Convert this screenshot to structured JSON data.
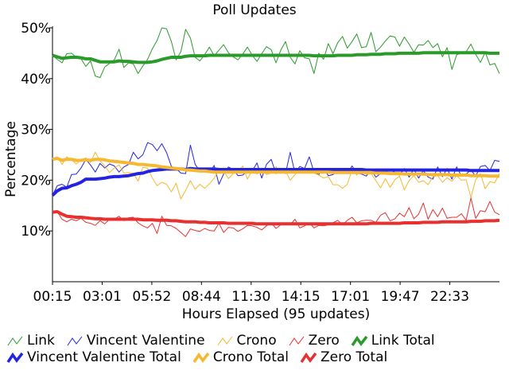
{
  "chart_data": {
    "type": "line",
    "title": "Poll Updates",
    "xlabel": "Hours Elapsed (95 updates)",
    "ylabel": "Percentage",
    "x_ticks": [
      "00:15",
      "03:01",
      "05:52",
      "08:44",
      "11:30",
      "14:15",
      "17:01",
      "19:47",
      "22:33"
    ],
    "y_ticks": [
      "10%",
      "20%",
      "30%",
      "40%",
      "50%"
    ],
    "ylim": [
      0,
      50
    ],
    "points": 95,
    "grid": false,
    "legend_position": "bottom",
    "series": [
      {
        "name": "Link",
        "color": "#2a9a2a",
        "style": "thin",
        "values": [
          44.6,
          43.8,
          43.1,
          44.9,
          45.0,
          44.2,
          43.9,
          42.4,
          43.5,
          40.5,
          40.2,
          42.3,
          43.0,
          43.7,
          45.8,
          42.2,
          43.1,
          42.9,
          41.0,
          42.5,
          43.8,
          45.9,
          47.5,
          50.0,
          49.8,
          47.3,
          43.7,
          45.3,
          49.7,
          48.0,
          44.2,
          43.5,
          44.7,
          46.2,
          44.5,
          45.6,
          46.7,
          45.1,
          44.3,
          43.7,
          44.8,
          46.2,
          44.6,
          43.4,
          44.9,
          46.3,
          45.7,
          43.1,
          45.6,
          47.3,
          44.2,
          42.9,
          45.5,
          44.1,
          43.9,
          41.0,
          45.0,
          43.8,
          46.9,
          44.9,
          47.1,
          48.3,
          46.0,
          47.3,
          48.8,
          46.1,
          46.3,
          49.1,
          45.3,
          46.2,
          47.4,
          48.4,
          48.2,
          46.4,
          48.2,
          46.8,
          45.2,
          46.7,
          46.6,
          47.5,
          46.1,
          46.9,
          44.3,
          46.1,
          41.8,
          44.7,
          45.0,
          45.3,
          46.8,
          44.8,
          43.2,
          45.2,
          42.7,
          43.0,
          41.0
        ]
      },
      {
        "name": "Vincent Valentine",
        "color": "#2424e0",
        "style": "thin",
        "values": [
          17.0,
          18.9,
          19.2,
          18.6,
          21.1,
          21.2,
          22.4,
          24.1,
          23.0,
          21.6,
          23.3,
          22.4,
          23.2,
          22.8,
          21.6,
          22.6,
          23.1,
          25.5,
          24.2,
          25.0,
          27.4,
          27.0,
          25.8,
          27.2,
          25.4,
          22.7,
          22.3,
          21.4,
          21.3,
          26.9,
          23.1,
          21.8,
          22.3,
          21.5,
          22.9,
          19.2,
          21.2,
          22.6,
          22.1,
          20.9,
          21.0,
          21.8,
          21.8,
          23.4,
          20.4,
          23.1,
          24.1,
          21.3,
          22.3,
          21.3,
          25.5,
          21.4,
          22.7,
          22.3,
          24.6,
          21.6,
          21.1,
          22.3,
          20.9,
          21.1,
          21.8,
          22.3,
          21.3,
          22.8,
          21.4,
          21.2,
          20.8,
          22.0,
          20.6,
          21.3,
          21.5,
          22.1,
          21.5,
          21.0,
          22.3,
          20.6,
          22.2,
          20.4,
          21.9,
          20.6,
          20.2,
          22.6,
          20.7,
          22.3,
          20.2,
          22.6,
          20.8,
          21.2,
          22.0,
          20.8,
          22.7,
          22.9,
          21.9,
          23.9,
          23.7
        ]
      },
      {
        "name": "Crono",
        "color": "#f5b830",
        "style": "thin",
        "values": [
          24.1,
          24.6,
          23.1,
          24.6,
          24.0,
          23.2,
          24.0,
          24.4,
          23.5,
          25.5,
          23.8,
          22.8,
          21.5,
          22.4,
          23.0,
          21.4,
          21.5,
          21.4,
          19.8,
          22.5,
          22.4,
          20.4,
          18.9,
          19.6,
          19.2,
          17.7,
          19.4,
          16.3,
          18.0,
          19.9,
          18.2,
          19.2,
          18.4,
          19.3,
          20.4,
          21.9,
          21.9,
          20.3,
          21.3,
          21.5,
          22.8,
          20.2,
          22.0,
          21.2,
          22.3,
          21.1,
          21.4,
          22.7,
          21.3,
          21.8,
          20.0,
          21.1,
          22.1,
          21.8,
          21.8,
          21.4,
          21.0,
          20.4,
          20.7,
          19.1,
          19.1,
          18.4,
          19.2,
          22.0,
          21.0,
          22.3,
          21.1,
          21.3,
          19.9,
          18.5,
          20.3,
          18.6,
          20.1,
          20.8,
          18.1,
          19.9,
          20.9,
          19.6,
          19.9,
          19.1,
          20.7,
          20.9,
          19.6,
          20.5,
          19.8,
          20.9,
          20.0,
          20.1,
          16.6,
          20.1,
          21.3,
          18.3,
          19.7,
          19.5,
          21.3
        ]
      },
      {
        "name": "Zero",
        "color": "#e83030",
        "style": "thin",
        "values": [
          13.7,
          13.8,
          12.3,
          11.8,
          12.3,
          12.0,
          12.5,
          11.7,
          11.5,
          11.1,
          12.0,
          11.4,
          12.3,
          12.3,
          12.9,
          12.0,
          12.6,
          12.7,
          11.6,
          11.0,
          10.6,
          11.5,
          9.5,
          12.9,
          11.1,
          11.0,
          10.5,
          9.7,
          8.9,
          10.4,
          10.1,
          9.9,
          10.5,
          10.1,
          10.0,
          11.5,
          9.7,
          10.7,
          10.6,
          9.9,
          10.4,
          11.1,
          11.0,
          10.7,
          10.2,
          11.0,
          11.6,
          10.5,
          11.2,
          11.5,
          11.2,
          12.3,
          10.6,
          11.0,
          11.6,
          10.6,
          11.1,
          11.0,
          11.2,
          11.6,
          12.1,
          11.2,
          12.1,
          12.7,
          11.6,
          12.0,
          12.1,
          12.1,
          11.7,
          13.1,
          13.6,
          12.0,
          12.4,
          13.5,
          12.8,
          14.6,
          12.4,
          13.3,
          15.5,
          12.3,
          14.2,
          12.8,
          14.5,
          12.5,
          12.7,
          12.7,
          13.4,
          12.1,
          16.5,
          12.5,
          14.0,
          13.8,
          15.8,
          13.7,
          13.2
        ]
      },
      {
        "name": "Link Total",
        "color": "#2a9a2a",
        "style": "thick",
        "values": [
          44.6,
          44.3,
          44.0,
          44.1,
          44.2,
          44.2,
          44.1,
          43.9,
          43.9,
          43.6,
          43.3,
          43.3,
          43.3,
          43.3,
          43.5,
          43.4,
          43.4,
          43.3,
          43.2,
          43.2,
          43.2,
          43.3,
          43.5,
          43.8,
          44.0,
          44.2,
          44.2,
          44.2,
          44.4,
          44.5,
          44.5,
          44.5,
          44.5,
          44.6,
          44.6,
          44.6,
          44.6,
          44.6,
          44.6,
          44.6,
          44.6,
          44.6,
          44.6,
          44.6,
          44.6,
          44.6,
          44.6,
          44.6,
          44.6,
          44.6,
          44.6,
          44.6,
          44.6,
          44.6,
          44.6,
          44.5,
          44.5,
          44.5,
          44.5,
          44.5,
          44.6,
          44.6,
          44.6,
          44.6,
          44.7,
          44.7,
          44.7,
          44.8,
          44.8,
          44.8,
          44.9,
          44.9,
          44.9,
          45.0,
          45.0,
          45.0,
          45.0,
          45.0,
          45.1,
          45.1,
          45.1,
          45.1,
          45.1,
          45.1,
          45.1,
          45.1,
          45.1,
          45.1,
          45.1,
          45.1,
          45.1,
          45.1,
          45.0,
          45.0,
          45.0
        ]
      },
      {
        "name": "Vincent Valentine Total",
        "color": "#2424e0",
        "style": "thick",
        "values": [
          17.0,
          17.9,
          18.4,
          18.5,
          18.9,
          19.2,
          19.6,
          20.2,
          20.2,
          20.2,
          20.3,
          20.4,
          20.6,
          20.7,
          20.7,
          20.8,
          20.9,
          21.1,
          21.3,
          21.4,
          21.7,
          21.9,
          22.0,
          22.1,
          22.2,
          22.2,
          22.2,
          22.2,
          22.1,
          22.3,
          22.2,
          22.2,
          22.2,
          22.2,
          22.2,
          22.1,
          22.1,
          22.1,
          22.1,
          22.1,
          22.1,
          22.1,
          22.1,
          22.1,
          22.1,
          22.1,
          22.1,
          22.1,
          22.1,
          22.1,
          22.1,
          22.1,
          22.1,
          22.1,
          22.1,
          22.1,
          22.1,
          22.1,
          22.1,
          22.1,
          22.1,
          22.1,
          22.1,
          22.1,
          22.1,
          22.1,
          22.0,
          22.0,
          22.0,
          22.0,
          22.0,
          22.0,
          22.0,
          22.0,
          22.0,
          22.0,
          22.0,
          22.0,
          22.0,
          22.0,
          22.0,
          22.0,
          22.0,
          22.0,
          22.0,
          22.0,
          22.0,
          22.0,
          21.9,
          21.9,
          21.9,
          21.9,
          21.9,
          21.9,
          21.9
        ]
      },
      {
        "name": "Crono Total",
        "color": "#f5b830",
        "style": "thick",
        "values": [
          24.1,
          24.3,
          23.9,
          24.1,
          24.1,
          23.9,
          23.9,
          24.0,
          23.9,
          24.1,
          24.1,
          24.0,
          23.8,
          23.7,
          23.6,
          23.5,
          23.4,
          23.3,
          23.1,
          23.1,
          23.0,
          22.9,
          22.8,
          22.6,
          22.5,
          22.4,
          22.3,
          22.2,
          22.0,
          22.0,
          21.9,
          21.8,
          21.8,
          21.7,
          21.6,
          21.6,
          21.6,
          21.6,
          21.6,
          21.6,
          21.6,
          21.6,
          21.6,
          21.6,
          21.6,
          21.6,
          21.6,
          21.6,
          21.6,
          21.6,
          21.6,
          21.6,
          21.6,
          21.6,
          21.6,
          21.6,
          21.6,
          21.6,
          21.6,
          21.5,
          21.5,
          21.5,
          21.5,
          21.5,
          21.5,
          21.5,
          21.5,
          21.5,
          21.4,
          21.4,
          21.4,
          21.3,
          21.3,
          21.3,
          21.2,
          21.2,
          21.2,
          21.2,
          21.2,
          21.1,
          21.1,
          21.1,
          21.1,
          21.1,
          21.0,
          21.0,
          21.0,
          21.0,
          20.9,
          20.9,
          20.9,
          20.9,
          20.8,
          20.8,
          20.8
        ]
      },
      {
        "name": "Zero Total",
        "color": "#e83030",
        "style": "thick",
        "values": [
          13.7,
          13.8,
          13.3,
          12.9,
          12.8,
          12.7,
          12.7,
          12.6,
          12.5,
          12.4,
          12.4,
          12.3,
          12.3,
          12.3,
          12.3,
          12.3,
          12.3,
          12.3,
          12.3,
          12.2,
          12.2,
          12.2,
          12.1,
          12.1,
          12.1,
          12.0,
          12.0,
          11.9,
          11.8,
          11.8,
          11.8,
          11.7,
          11.7,
          11.6,
          11.6,
          11.6,
          11.6,
          11.5,
          11.5,
          11.5,
          11.5,
          11.5,
          11.5,
          11.4,
          11.4,
          11.4,
          11.4,
          11.4,
          11.4,
          11.4,
          11.4,
          11.4,
          11.4,
          11.4,
          11.4,
          11.4,
          11.4,
          11.4,
          11.4,
          11.4,
          11.4,
          11.4,
          11.4,
          11.4,
          11.4,
          11.4,
          11.4,
          11.5,
          11.5,
          11.5,
          11.5,
          11.5,
          11.5,
          11.5,
          11.6,
          11.6,
          11.6,
          11.6,
          11.7,
          11.7,
          11.7,
          11.7,
          11.8,
          11.8,
          11.8,
          11.8,
          11.8,
          11.8,
          11.9,
          11.9,
          11.9,
          12.0,
          12.0,
          12.0,
          12.1
        ]
      }
    ]
  }
}
